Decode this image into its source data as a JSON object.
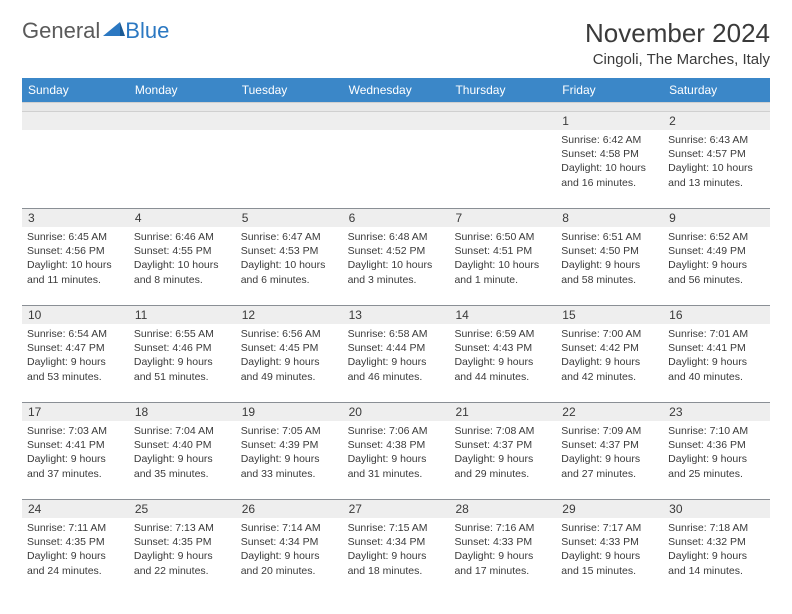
{
  "logo": {
    "general": "General",
    "blue": "Blue"
  },
  "title": "November 2024",
  "location": "Cingoli, The Marches, Italy",
  "colors": {
    "header_bg": "#3b87c8",
    "header_text": "#ffffff",
    "daynum_bg": "#eeeeee",
    "text": "#3a3a3a",
    "rule": "#8a8f95",
    "logo_gray": "#5a5a5a",
    "logo_blue": "#2b78c2"
  },
  "weekdays": [
    "Sunday",
    "Monday",
    "Tuesday",
    "Wednesday",
    "Thursday",
    "Friday",
    "Saturday"
  ],
  "weeks": [
    [
      null,
      null,
      null,
      null,
      null,
      {
        "n": "1",
        "sunrise": "Sunrise: 6:42 AM",
        "sunset": "Sunset: 4:58 PM",
        "daylight": "Daylight: 10 hours and 16 minutes."
      },
      {
        "n": "2",
        "sunrise": "Sunrise: 6:43 AM",
        "sunset": "Sunset: 4:57 PM",
        "daylight": "Daylight: 10 hours and 13 minutes."
      }
    ],
    [
      {
        "n": "3",
        "sunrise": "Sunrise: 6:45 AM",
        "sunset": "Sunset: 4:56 PM",
        "daylight": "Daylight: 10 hours and 11 minutes."
      },
      {
        "n": "4",
        "sunrise": "Sunrise: 6:46 AM",
        "sunset": "Sunset: 4:55 PM",
        "daylight": "Daylight: 10 hours and 8 minutes."
      },
      {
        "n": "5",
        "sunrise": "Sunrise: 6:47 AM",
        "sunset": "Sunset: 4:53 PM",
        "daylight": "Daylight: 10 hours and 6 minutes."
      },
      {
        "n": "6",
        "sunrise": "Sunrise: 6:48 AM",
        "sunset": "Sunset: 4:52 PM",
        "daylight": "Daylight: 10 hours and 3 minutes."
      },
      {
        "n": "7",
        "sunrise": "Sunrise: 6:50 AM",
        "sunset": "Sunset: 4:51 PM",
        "daylight": "Daylight: 10 hours and 1 minute."
      },
      {
        "n": "8",
        "sunrise": "Sunrise: 6:51 AM",
        "sunset": "Sunset: 4:50 PM",
        "daylight": "Daylight: 9 hours and 58 minutes."
      },
      {
        "n": "9",
        "sunrise": "Sunrise: 6:52 AM",
        "sunset": "Sunset: 4:49 PM",
        "daylight": "Daylight: 9 hours and 56 minutes."
      }
    ],
    [
      {
        "n": "10",
        "sunrise": "Sunrise: 6:54 AM",
        "sunset": "Sunset: 4:47 PM",
        "daylight": "Daylight: 9 hours and 53 minutes."
      },
      {
        "n": "11",
        "sunrise": "Sunrise: 6:55 AM",
        "sunset": "Sunset: 4:46 PM",
        "daylight": "Daylight: 9 hours and 51 minutes."
      },
      {
        "n": "12",
        "sunrise": "Sunrise: 6:56 AM",
        "sunset": "Sunset: 4:45 PM",
        "daylight": "Daylight: 9 hours and 49 minutes."
      },
      {
        "n": "13",
        "sunrise": "Sunrise: 6:58 AM",
        "sunset": "Sunset: 4:44 PM",
        "daylight": "Daylight: 9 hours and 46 minutes."
      },
      {
        "n": "14",
        "sunrise": "Sunrise: 6:59 AM",
        "sunset": "Sunset: 4:43 PM",
        "daylight": "Daylight: 9 hours and 44 minutes."
      },
      {
        "n": "15",
        "sunrise": "Sunrise: 7:00 AM",
        "sunset": "Sunset: 4:42 PM",
        "daylight": "Daylight: 9 hours and 42 minutes."
      },
      {
        "n": "16",
        "sunrise": "Sunrise: 7:01 AM",
        "sunset": "Sunset: 4:41 PM",
        "daylight": "Daylight: 9 hours and 40 minutes."
      }
    ],
    [
      {
        "n": "17",
        "sunrise": "Sunrise: 7:03 AM",
        "sunset": "Sunset: 4:41 PM",
        "daylight": "Daylight: 9 hours and 37 minutes."
      },
      {
        "n": "18",
        "sunrise": "Sunrise: 7:04 AM",
        "sunset": "Sunset: 4:40 PM",
        "daylight": "Daylight: 9 hours and 35 minutes."
      },
      {
        "n": "19",
        "sunrise": "Sunrise: 7:05 AM",
        "sunset": "Sunset: 4:39 PM",
        "daylight": "Daylight: 9 hours and 33 minutes."
      },
      {
        "n": "20",
        "sunrise": "Sunrise: 7:06 AM",
        "sunset": "Sunset: 4:38 PM",
        "daylight": "Daylight: 9 hours and 31 minutes."
      },
      {
        "n": "21",
        "sunrise": "Sunrise: 7:08 AM",
        "sunset": "Sunset: 4:37 PM",
        "daylight": "Daylight: 9 hours and 29 minutes."
      },
      {
        "n": "22",
        "sunrise": "Sunrise: 7:09 AM",
        "sunset": "Sunset: 4:37 PM",
        "daylight": "Daylight: 9 hours and 27 minutes."
      },
      {
        "n": "23",
        "sunrise": "Sunrise: 7:10 AM",
        "sunset": "Sunset: 4:36 PM",
        "daylight": "Daylight: 9 hours and 25 minutes."
      }
    ],
    [
      {
        "n": "24",
        "sunrise": "Sunrise: 7:11 AM",
        "sunset": "Sunset: 4:35 PM",
        "daylight": "Daylight: 9 hours and 24 minutes."
      },
      {
        "n": "25",
        "sunrise": "Sunrise: 7:13 AM",
        "sunset": "Sunset: 4:35 PM",
        "daylight": "Daylight: 9 hours and 22 minutes."
      },
      {
        "n": "26",
        "sunrise": "Sunrise: 7:14 AM",
        "sunset": "Sunset: 4:34 PM",
        "daylight": "Daylight: 9 hours and 20 minutes."
      },
      {
        "n": "27",
        "sunrise": "Sunrise: 7:15 AM",
        "sunset": "Sunset: 4:34 PM",
        "daylight": "Daylight: 9 hours and 18 minutes."
      },
      {
        "n": "28",
        "sunrise": "Sunrise: 7:16 AM",
        "sunset": "Sunset: 4:33 PM",
        "daylight": "Daylight: 9 hours and 17 minutes."
      },
      {
        "n": "29",
        "sunrise": "Sunrise: 7:17 AM",
        "sunset": "Sunset: 4:33 PM",
        "daylight": "Daylight: 9 hours and 15 minutes."
      },
      {
        "n": "30",
        "sunrise": "Sunrise: 7:18 AM",
        "sunset": "Sunset: 4:32 PM",
        "daylight": "Daylight: 9 hours and 14 minutes."
      }
    ]
  ]
}
